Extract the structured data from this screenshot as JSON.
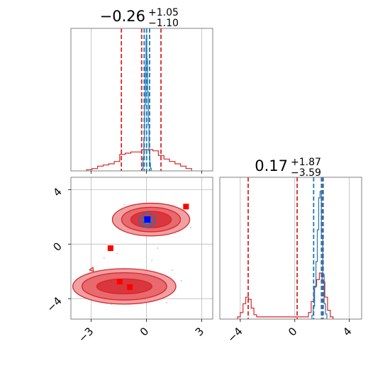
{
  "colors": {
    "red": "#d62728",
    "red_fill_light": "#f0a0a3",
    "red_fill_mid": "#e8696e",
    "red_fill_dark": "#d9363d",
    "blue": "#1f77b4",
    "marker_red": "#ff0000",
    "marker_blue": "#0000ff",
    "grid": "#b0b0b0",
    "frame": "#808080"
  },
  "chart_data": [
    {
      "type": "histogram",
      "panel": "top-left",
      "title": {
        "value": "−0.26",
        "upper": "+1.05",
        "lower": "−1.10"
      },
      "xlim": [
        -4.1,
        3.6
      ],
      "grid": true,
      "red_quantile_lines": [
        -1.36,
        -0.26,
        0.79
      ],
      "blue_quantile_lines": [
        -0.12,
        0.01,
        0.17
      ],
      "red_series": {
        "name": "",
        "x": [
          -3.1,
          -2.8,
          -2.5,
          -2.2,
          -1.9,
          -1.6,
          -1.3,
          -1.0,
          -0.7,
          -0.4,
          -0.1,
          0.2,
          0.5,
          0.8,
          1.1,
          1.4,
          1.7,
          2.0,
          2.3
        ],
        "values": [
          1,
          2,
          4,
          5,
          6,
          8,
          14,
          15,
          16,
          16,
          18,
          18,
          17,
          13,
          10,
          8,
          6,
          4,
          2
        ]
      },
      "blue_series": {
        "name": "",
        "x": [
          -0.2,
          -0.16,
          -0.12,
          -0.08,
          -0.04,
          0.0,
          0.04,
          0.08,
          0.12,
          0.16,
          0.2,
          0.24
        ],
        "values": [
          2,
          10,
          25,
          50,
          80,
          100,
          85,
          60,
          35,
          15,
          6,
          2
        ]
      }
    },
    {
      "type": "contour-scatter",
      "panel": "bottom-left",
      "xlim": [
        -4.1,
        3.6
      ],
      "ylim": [
        -5.5,
        4.9
      ],
      "xticks": [
        "−3",
        "0",
        "3"
      ],
      "yticks": [
        "−4",
        "0",
        "4"
      ],
      "xtick_values": [
        -3,
        0,
        3
      ],
      "ytick_values": [
        -4,
        0,
        4
      ],
      "grid": true,
      "red_blobs": [
        {
          "cx": 0.25,
          "cy": 1.8,
          "rx": [
            2.1,
            1.6,
            1.1
          ],
          "ry": [
            1.2,
            0.9,
            0.6
          ]
        },
        {
          "cx": -1.2,
          "cy": -3.1,
          "rx": [
            2.8,
            2.3,
            1.5
          ],
          "ry": [
            1.3,
            1.0,
            0.55
          ]
        }
      ],
      "blue_blob": {
        "cx": 0.05,
        "cy": 1.75,
        "rx": [
          0.45,
          0.25
        ],
        "ry": [
          0.5,
          0.3
        ]
      },
      "red_markers": [
        {
          "x": 2.15,
          "y": 2.75
        },
        {
          "x": 0.05,
          "y": 1.8
        },
        {
          "x": -1.95,
          "y": -0.3
        },
        {
          "x": -1.45,
          "y": -2.75
        },
        {
          "x": -0.9,
          "y": -3.15
        }
      ],
      "blue_markers": [
        {
          "x": 0.05,
          "y": 1.8
        }
      ]
    },
    {
      "type": "histogram",
      "panel": "bottom-right",
      "title": {
        "value": "0.17",
        "upper": "+1.87",
        "lower": "−3.59"
      },
      "xlim": [
        -5.5,
        4.9
      ],
      "xticks": [
        "−4",
        "0",
        "4"
      ],
      "xtick_values": [
        -4,
        0,
        4
      ],
      "grid": true,
      "red_quantile_lines": [
        -3.42,
        0.17,
        2.04
      ],
      "blue_quantile_lines": [
        1.38,
        1.95,
        2.08
      ],
      "red_series": {
        "name": "",
        "x": [
          -4.1,
          -3.9,
          -3.7,
          -3.5,
          -3.3,
          -3.1,
          -2.9,
          -2.7,
          0.9,
          1.1,
          1.3,
          1.5,
          1.7,
          1.9,
          2.1,
          2.3,
          2.5,
          2.7
        ],
        "values": [
          1,
          3,
          7,
          10,
          9,
          5,
          2,
          1,
          1,
          3,
          8,
          15,
          18,
          21,
          17,
          10,
          4,
          1
        ]
      },
      "blue_series": {
        "name": "",
        "x": [
          1.3,
          1.4,
          1.5,
          1.6,
          1.7,
          1.8,
          1.9,
          2.0,
          2.1,
          2.2,
          2.3
        ],
        "values": [
          3,
          10,
          25,
          45,
          70,
          95,
          100,
          65,
          35,
          12,
          4
        ]
      }
    }
  ]
}
